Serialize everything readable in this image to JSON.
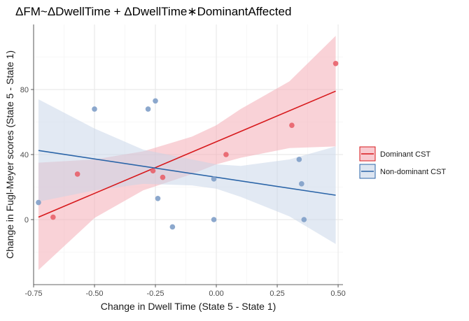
{
  "chart_data": {
    "type": "scatter",
    "title": "ΔFM~ΔDwellTime + ΔDwellTime∗DominantAffected",
    "xlabel": "Change in Dwell Time (State 5 - State 1)",
    "ylabel": "Change in Fugl-Meyer scores (State 5 - State 1)",
    "xlim": [
      -0.75,
      0.52
    ],
    "ylim": [
      -40,
      120
    ],
    "x_ticks": [
      -0.75,
      -0.5,
      -0.25,
      0.0,
      0.25,
      0.5
    ],
    "x_tick_labels": [
      "-0.75",
      "-0.50",
      "-0.25",
      "0.00",
      "0.25",
      "0.50"
    ],
    "y_ticks": [
      0,
      40,
      80
    ],
    "y_tick_labels": [
      "0",
      "40",
      "80"
    ],
    "grid": true,
    "legend_position": "right",
    "series": [
      {
        "name": "Dominant CST",
        "color": "#d7191c",
        "point_color": "#e8616a",
        "band_color": "#f4a6b0",
        "points": [
          {
            "x": -0.67,
            "y": 1.5
          },
          {
            "x": -0.57,
            "y": 28
          },
          {
            "x": -0.26,
            "y": 30
          },
          {
            "x": -0.22,
            "y": 26
          },
          {
            "x": 0.04,
            "y": 40
          },
          {
            "x": 0.31,
            "y": 58
          },
          {
            "x": 0.49,
            "y": 96
          }
        ],
        "fit": {
          "x": [
            -0.73,
            0.49
          ],
          "y": [
            1.5,
            79
          ]
        },
        "band_upper": [
          {
            "x": -0.73,
            "y": 35
          },
          {
            "x": -0.5,
            "y": 37
          },
          {
            "x": -0.3,
            "y": 42
          },
          {
            "x": -0.1,
            "y": 51
          },
          {
            "x": 0.0,
            "y": 58
          },
          {
            "x": 0.1,
            "y": 68
          },
          {
            "x": 0.3,
            "y": 85
          },
          {
            "x": 0.49,
            "y": 113
          }
        ],
        "band_lower": [
          {
            "x": -0.73,
            "y": -31
          },
          {
            "x": -0.5,
            "y": 1
          },
          {
            "x": -0.3,
            "y": 18
          },
          {
            "x": -0.1,
            "y": 28
          },
          {
            "x": 0.0,
            "y": 34
          },
          {
            "x": 0.1,
            "y": 38
          },
          {
            "x": 0.3,
            "y": 44
          },
          {
            "x": 0.49,
            "y": 45
          }
        ]
      },
      {
        "name": "Non-dominant CST",
        "color": "#2b65a8",
        "point_color": "#7f9fc8",
        "band_color": "#c6d4e8",
        "points": [
          {
            "x": -0.73,
            "y": 10.5
          },
          {
            "x": -0.5,
            "y": 68
          },
          {
            "x": -0.28,
            "y": 68
          },
          {
            "x": -0.25,
            "y": 73
          },
          {
            "x": -0.24,
            "y": 13
          },
          {
            "x": -0.18,
            "y": -4.5
          },
          {
            "x": -0.01,
            "y": 25
          },
          {
            "x": -0.01,
            "y": 0
          },
          {
            "x": 0.34,
            "y": 37
          },
          {
            "x": 0.35,
            "y": 22
          },
          {
            "x": 0.36,
            "y": 0
          }
        ],
        "fit": {
          "x": [
            -0.73,
            0.49
          ],
          "y": [
            42.5,
            15
          ]
        },
        "band_upper": [
          {
            "x": -0.73,
            "y": 74
          },
          {
            "x": -0.5,
            "y": 56
          },
          {
            "x": -0.3,
            "y": 43
          },
          {
            "x": -0.1,
            "y": 37
          },
          {
            "x": 0.0,
            "y": 34
          },
          {
            "x": 0.1,
            "y": 33
          },
          {
            "x": 0.3,
            "y": 37
          },
          {
            "x": 0.49,
            "y": 45
          }
        ],
        "band_lower": [
          {
            "x": -0.73,
            "y": 11
          },
          {
            "x": -0.5,
            "y": 18
          },
          {
            "x": -0.3,
            "y": 22
          },
          {
            "x": -0.1,
            "y": 21
          },
          {
            "x": 0.0,
            "y": 19
          },
          {
            "x": 0.1,
            "y": 14
          },
          {
            "x": 0.3,
            "y": 2
          },
          {
            "x": 0.49,
            "y": -15
          }
        ]
      }
    ]
  }
}
